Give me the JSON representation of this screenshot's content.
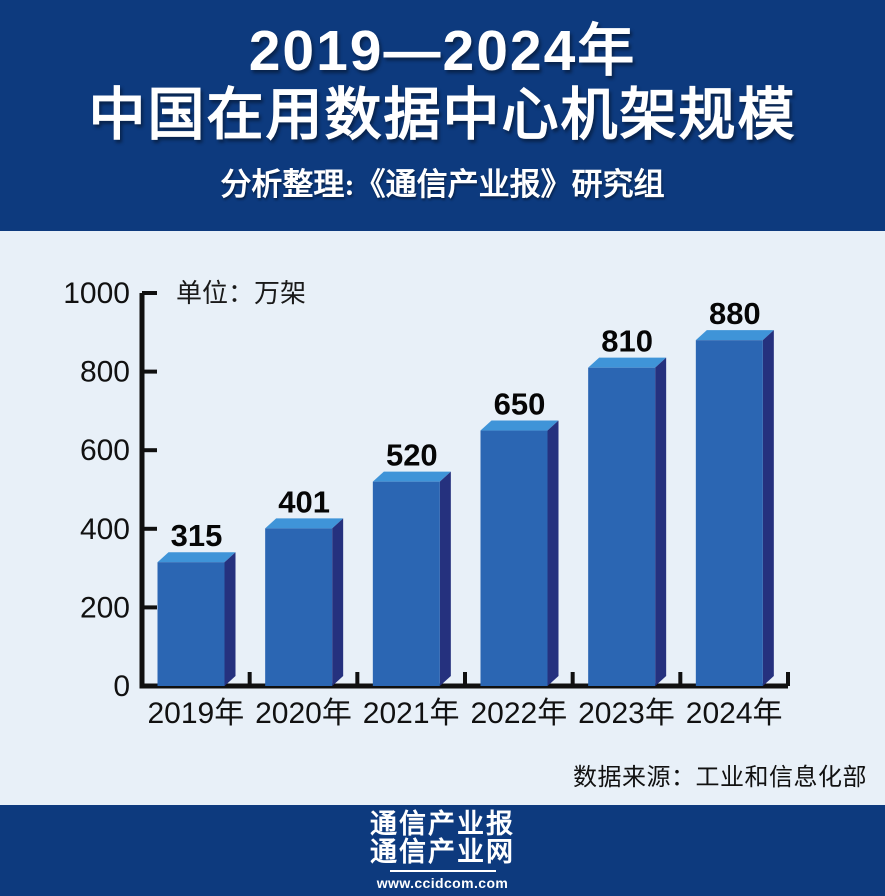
{
  "page": {
    "background_color": "#e8f0f8",
    "banner_color": "#0d3a7e"
  },
  "header": {
    "title_line1": "2019—2024年",
    "title_line2": "中国在用数据中心机架规模",
    "subtitle": "分析整理:《通信产业报》研究组"
  },
  "chart_data": {
    "type": "bar",
    "title": "2019—2024年中国在用数据中心机架规模",
    "unit_label": "单位：万架",
    "categories": [
      "2019年",
      "2020年",
      "2021年",
      "2022年",
      "2023年",
      "2024年"
    ],
    "values": [
      315,
      401,
      520,
      650,
      810,
      880
    ],
    "xlabel": "",
    "ylabel": "万架",
    "ylim": [
      0,
      1000
    ],
    "y_ticks": [
      0,
      200,
      400,
      600,
      800,
      1000
    ],
    "grid": false,
    "legend": "none",
    "style_3d": true,
    "style": {
      "bar_front": "#2b66b3",
      "bar_top": "#3f94d8",
      "bar_side": "#25317e",
      "axis_color": "#101010",
      "value_label_color": "#060606",
      "tick_label_color": "#111111"
    }
  },
  "source_note": "数据来源：工业和信息化部",
  "footer": {
    "brand_line1": "通信产业报",
    "brand_line2": "通信产业网",
    "website": "www.ccidcom.com"
  }
}
